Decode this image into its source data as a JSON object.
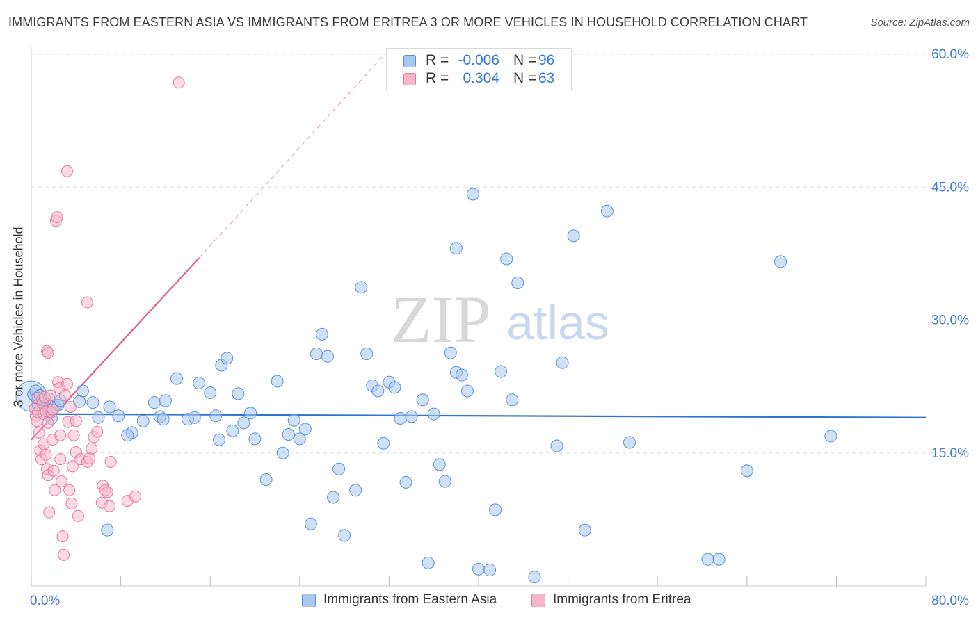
{
  "header": {
    "title": "IMMIGRANTS FROM EASTERN ASIA VS IMMIGRANTS FROM ERITREA 3 OR MORE VEHICLES IN HOUSEHOLD CORRELATION CHART",
    "source": "Source: ZipAtlas.com"
  },
  "legend": {
    "row1": {
      "r_label": "R =",
      "r_value": "-0.006",
      "n_label": "N =",
      "n_value": "96"
    },
    "row2": {
      "r_label": "R =",
      "r_value": "0.304",
      "n_label": "N =",
      "n_value": "63"
    }
  },
  "bottom_legend": {
    "series1": "Immigrants from Eastern Asia",
    "series2": "Immigrants from Eritrea"
  },
  "watermark": {
    "zip": "ZIP",
    "atlas": "atlas"
  },
  "colors": {
    "blue_fill": "#a9c8ee",
    "blue_stroke": "#5a8fd8",
    "blue_line": "#2f74d0",
    "pink_fill": "#f6b6c9",
    "pink_stroke": "#e8759a",
    "pink_line": "#e0608a",
    "tick_label": "#3b78d0",
    "grid": "#dddddd"
  },
  "chart_data": {
    "type": "scatter",
    "title": "IMMIGRANTS FROM EASTERN ASIA VS IMMIGRANTS FROM ERITREA 3 OR MORE VEHICLES IN HOUSEHOLD CORRELATION CHART",
    "xlabel": "",
    "ylabel": "3 or more Vehicles in Household",
    "xlim": [
      0,
      80
    ],
    "ylim": [
      0,
      60
    ],
    "x_tick_labels": [
      "0.0%",
      "80.0%"
    ],
    "y_ticks": [
      15,
      30,
      45,
      60
    ],
    "y_tick_labels": [
      "15.0%",
      "30.0%",
      "45.0%",
      "60.0%"
    ],
    "grid": true,
    "series": [
      {
        "name": "Immigrants from Eastern Asia",
        "r": -0.006,
        "n": 96,
        "trend": {
          "x0": 0,
          "y0": 19.4,
          "x1": 80,
          "y1": 19.0
        },
        "points": [
          [
            0.2,
            21.6
          ],
          [
            0.4,
            22.0
          ],
          [
            0.5,
            21.2
          ],
          [
            0.6,
            20.4
          ],
          [
            0.8,
            21.5
          ],
          [
            1.0,
            21.0
          ],
          [
            1.3,
            20.1
          ],
          [
            1.5,
            19.8
          ],
          [
            1.6,
            21.1
          ],
          [
            1.8,
            18.9
          ],
          [
            2.1,
            20.2
          ],
          [
            2.4,
            20.4
          ],
          [
            2.6,
            20.9
          ],
          [
            4.3,
            20.8
          ],
          [
            4.6,
            22.0
          ],
          [
            5.5,
            20.7
          ],
          [
            6.0,
            19.0
          ],
          [
            7.0,
            20.2
          ],
          [
            7.8,
            19.2
          ],
          [
            9.0,
            17.3
          ],
          [
            10.0,
            18.6
          ],
          [
            11.0,
            20.7
          ],
          [
            11.5,
            19.1
          ],
          [
            11.8,
            18.8
          ],
          [
            12.0,
            20.9
          ],
          [
            13.0,
            23.4
          ],
          [
            14.0,
            18.8
          ],
          [
            14.6,
            19.0
          ],
          [
            15.0,
            22.9
          ],
          [
            16.0,
            21.8
          ],
          [
            16.5,
            19.2
          ],
          [
            16.8,
            16.5
          ],
          [
            17.0,
            24.9
          ],
          [
            17.5,
            25.7
          ],
          [
            18.0,
            17.5
          ],
          [
            18.5,
            21.7
          ],
          [
            19.0,
            18.4
          ],
          [
            19.6,
            19.5
          ],
          [
            20.0,
            16.6
          ],
          [
            21.0,
            12.0
          ],
          [
            22.0,
            23.1
          ],
          [
            22.5,
            15.0
          ],
          [
            23.0,
            17.1
          ],
          [
            23.5,
            18.7
          ],
          [
            24.0,
            16.6
          ],
          [
            24.5,
            17.7
          ],
          [
            25.0,
            7.0
          ],
          [
            25.5,
            26.2
          ],
          [
            26.0,
            28.4
          ],
          [
            26.5,
            25.9
          ],
          [
            27.0,
            10.0
          ],
          [
            27.5,
            13.2
          ],
          [
            28.0,
            5.7
          ],
          [
            29.0,
            10.8
          ],
          [
            29.5,
            33.7
          ],
          [
            30.0,
            26.2
          ],
          [
            30.5,
            22.6
          ],
          [
            31.0,
            22.0
          ],
          [
            31.5,
            16.1
          ],
          [
            32.0,
            23.0
          ],
          [
            32.5,
            22.4
          ],
          [
            33.0,
            18.9
          ],
          [
            33.5,
            11.7
          ],
          [
            34.0,
            19.1
          ],
          [
            35.0,
            21.0
          ],
          [
            35.5,
            2.6
          ],
          [
            36.0,
            19.4
          ],
          [
            36.5,
            13.7
          ],
          [
            37.0,
            11.8
          ],
          [
            37.5,
            26.3
          ],
          [
            38.0,
            24.1
          ],
          [
            38.5,
            23.8
          ],
          [
            38.0,
            38.1
          ],
          [
            39.0,
            22.0
          ],
          [
            39.5,
            44.2
          ],
          [
            40.0,
            1.9
          ],
          [
            41.0,
            1.8
          ],
          [
            41.5,
            8.6
          ],
          [
            42.0,
            24.2
          ],
          [
            42.5,
            36.9
          ],
          [
            43.0,
            21.0
          ],
          [
            43.5,
            34.2
          ],
          [
            45.0,
            1.0
          ],
          [
            47.0,
            15.8
          ],
          [
            47.5,
            25.2
          ],
          [
            48.5,
            39.5
          ],
          [
            49.5,
            6.3
          ],
          [
            51.5,
            42.3
          ],
          [
            53.5,
            16.2
          ],
          [
            60.5,
            3.0
          ],
          [
            61.5,
            3.0
          ],
          [
            64.0,
            13.0
          ],
          [
            67.0,
            36.6
          ],
          [
            71.5,
            16.9
          ],
          [
            6.8,
            6.3
          ],
          [
            8.6,
            17.0
          ]
        ]
      },
      {
        "name": "Immigrants from Eritrea",
        "r": 0.304,
        "n": 63,
        "trend": {
          "x0": 0,
          "y0": 16.5,
          "x1": 15.0,
          "y1": 37.0,
          "dashed_to": {
            "x": 31.6,
            "y": 60.0
          }
        },
        "points": [
          [
            0.3,
            20.0
          ],
          [
            0.4,
            19.2
          ],
          [
            0.5,
            18.6
          ],
          [
            0.6,
            21.2
          ],
          [
            0.6,
            19.6
          ],
          [
            0.7,
            17.3
          ],
          [
            0.8,
            15.3
          ],
          [
            0.9,
            14.3
          ],
          [
            1.0,
            20.6
          ],
          [
            1.1,
            19.4
          ],
          [
            1.1,
            16.0
          ],
          [
            1.2,
            21.3
          ],
          [
            1.3,
            19.7
          ],
          [
            1.3,
            14.8
          ],
          [
            1.4,
            13.2
          ],
          [
            1.5,
            12.5
          ],
          [
            1.5,
            18.4
          ],
          [
            1.6,
            8.3
          ],
          [
            1.7,
            21.5
          ],
          [
            1.8,
            19.6
          ],
          [
            1.9,
            16.5
          ],
          [
            2.0,
            13.0
          ],
          [
            2.1,
            10.8
          ],
          [
            2.2,
            41.2
          ],
          [
            2.3,
            41.6
          ],
          [
            2.4,
            23.0
          ],
          [
            2.5,
            22.3
          ],
          [
            2.6,
            17.0
          ],
          [
            2.6,
            14.3
          ],
          [
            2.7,
            11.8
          ],
          [
            2.8,
            5.6
          ],
          [
            2.9,
            3.5
          ],
          [
            3.0,
            21.5
          ],
          [
            3.2,
            46.8
          ],
          [
            3.2,
            22.8
          ],
          [
            3.3,
            18.5
          ],
          [
            3.4,
            10.8
          ],
          [
            3.5,
            20.2
          ],
          [
            3.6,
            9.3
          ],
          [
            3.7,
            13.5
          ],
          [
            3.8,
            17.0
          ],
          [
            4.0,
            18.6
          ],
          [
            4.0,
            15.1
          ],
          [
            4.2,
            7.9
          ],
          [
            4.4,
            14.3
          ],
          [
            5.0,
            14.0
          ],
          [
            5.0,
            32.0
          ],
          [
            5.2,
            14.4
          ],
          [
            5.4,
            15.5
          ],
          [
            5.6,
            16.8
          ],
          [
            5.9,
            17.4
          ],
          [
            6.3,
            9.4
          ],
          [
            6.4,
            11.3
          ],
          [
            6.6,
            10.8
          ],
          [
            6.8,
            10.6
          ],
          [
            7.0,
            9.0
          ],
          [
            7.1,
            14.0
          ],
          [
            1.4,
            26.5
          ],
          [
            1.5,
            26.3
          ],
          [
            8.6,
            9.6
          ],
          [
            9.3,
            10.1
          ],
          [
            13.2,
            56.8
          ],
          [
            1.9,
            19.9
          ]
        ]
      }
    ]
  }
}
